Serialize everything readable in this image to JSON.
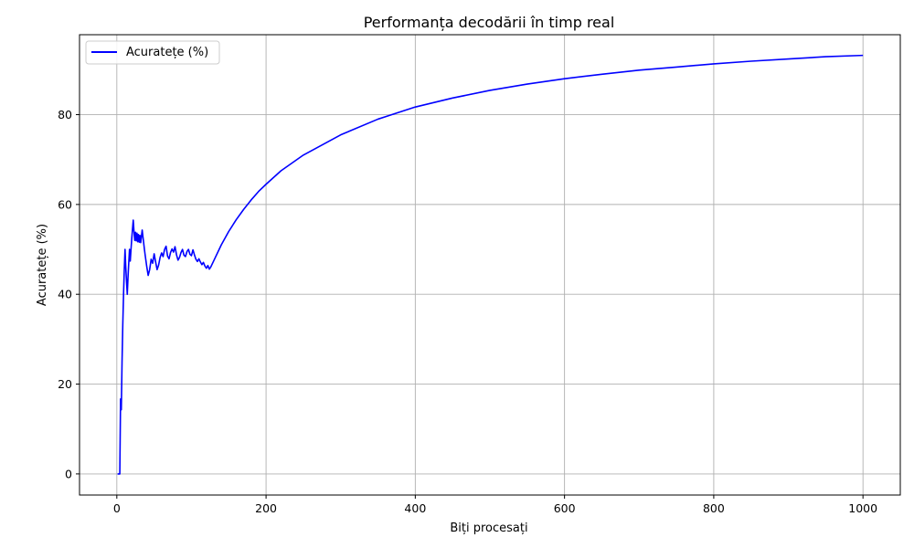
{
  "chart_data": {
    "type": "line",
    "title": "Performanța decodării în timp real",
    "xlabel": "Biți procesați",
    "ylabel": "Acuratețe (%)",
    "xlim": [
      -50,
      1050
    ],
    "ylim": [
      -4.7,
      97.8
    ],
    "xticks": [
      0,
      200,
      400,
      600,
      800,
      1000
    ],
    "yticks": [
      0,
      20,
      40,
      60,
      80
    ],
    "grid": true,
    "legend_position": "top-left",
    "series": [
      {
        "name": "Acuratețe (%)",
        "color": "#0000ff",
        "points": [
          [
            1,
            0
          ],
          [
            2,
            0
          ],
          [
            3,
            0
          ],
          [
            4,
            0
          ],
          [
            5,
            16.7
          ],
          [
            6,
            14.3
          ],
          [
            7,
            25
          ],
          [
            8,
            33.3
          ],
          [
            9,
            40
          ],
          [
            10,
            45.5
          ],
          [
            11,
            50
          ],
          [
            12,
            46
          ],
          [
            13,
            42.9
          ],
          [
            14,
            40
          ],
          [
            15,
            43.8
          ],
          [
            16,
            47
          ],
          [
            17,
            50
          ],
          [
            18,
            47.4
          ],
          [
            19,
            50
          ],
          [
            20,
            52.4
          ],
          [
            21,
            54.5
          ],
          [
            22,
            56.5
          ],
          [
            23,
            54
          ],
          [
            24,
            52
          ],
          [
            25,
            53.8
          ],
          [
            26,
            51.9
          ],
          [
            27,
            53.6
          ],
          [
            28,
            51.7
          ],
          [
            29,
            53.3
          ],
          [
            30,
            51.6
          ],
          [
            31,
            53.1
          ],
          [
            32,
            51.5
          ],
          [
            33,
            52.9
          ],
          [
            34,
            54.3
          ],
          [
            35,
            52.8
          ],
          [
            36,
            51.4
          ],
          [
            37,
            50
          ],
          [
            38,
            48.7
          ],
          [
            39,
            47.5
          ],
          [
            40,
            46.3
          ],
          [
            42,
            44.2
          ],
          [
            44,
            45.5
          ],
          [
            46,
            47.8
          ],
          [
            48,
            46.9
          ],
          [
            50,
            49
          ],
          [
            52,
            47.2
          ],
          [
            54,
            45.5
          ],
          [
            56,
            46.5
          ],
          [
            58,
            48.2
          ],
          [
            60,
            49.2
          ],
          [
            62,
            48.4
          ],
          [
            64,
            50
          ],
          [
            66,
            50.7
          ],
          [
            68,
            48.5
          ],
          [
            70,
            47.9
          ],
          [
            72,
            49.3
          ],
          [
            74,
            50.1
          ],
          [
            76,
            49.4
          ],
          [
            78,
            50.6
          ],
          [
            80,
            48.8
          ],
          [
            82,
            47.6
          ],
          [
            84,
            48.2
          ],
          [
            86,
            49.3
          ],
          [
            88,
            50
          ],
          [
            90,
            48.7
          ],
          [
            92,
            48.4
          ],
          [
            94,
            49.5
          ],
          [
            96,
            50
          ],
          [
            98,
            48.9
          ],
          [
            100,
            48.6
          ],
          [
            102,
            49.9
          ],
          [
            104,
            48.8
          ],
          [
            106,
            47.8
          ],
          [
            108,
            47.3
          ],
          [
            110,
            47.9
          ],
          [
            112,
            47.2
          ],
          [
            114,
            46.6
          ],
          [
            116,
            47.1
          ],
          [
            118,
            46.3
          ],
          [
            120,
            45.8
          ],
          [
            122,
            46.4
          ],
          [
            124,
            45.6
          ],
          [
            126,
            46.1
          ],
          [
            130,
            47.5
          ],
          [
            140,
            51
          ],
          [
            150,
            54
          ],
          [
            160,
            56.6
          ],
          [
            170,
            58.9
          ],
          [
            180,
            61
          ],
          [
            190,
            62.9
          ],
          [
            200,
            64.5
          ],
          [
            220,
            67.5
          ],
          [
            250,
            71
          ],
          [
            300,
            75.5
          ],
          [
            350,
            79
          ],
          [
            400,
            81.7
          ],
          [
            450,
            83.7
          ],
          [
            500,
            85.4
          ],
          [
            550,
            86.8
          ],
          [
            600,
            88
          ],
          [
            650,
            89
          ],
          [
            700,
            89.9
          ],
          [
            750,
            90.6
          ],
          [
            800,
            91.3
          ],
          [
            850,
            91.9
          ],
          [
            900,
            92.4
          ],
          [
            950,
            92.9
          ],
          [
            1000,
            93.2
          ]
        ]
      }
    ]
  }
}
